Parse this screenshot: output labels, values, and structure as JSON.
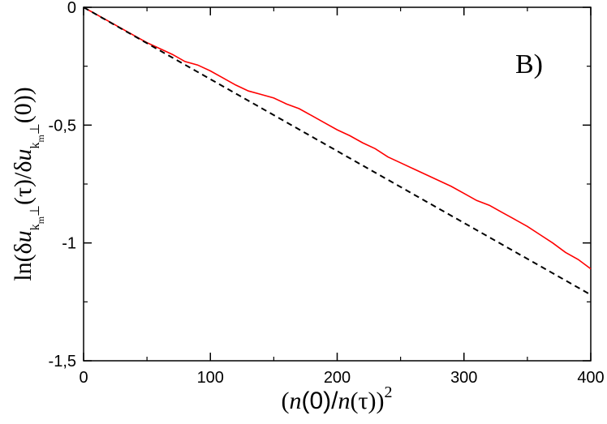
{
  "chart_data": {
    "type": "line",
    "panel_label": "B)",
    "xlabel": "(n(0)/n(τ))²",
    "ylabel": "ln(δu_{k_m⊥}(τ)/δu_{k_m⊥}(0))",
    "xlim": [
      0,
      400
    ],
    "ylim": [
      -1.5,
      0
    ],
    "x_ticks": [
      0,
      100,
      200,
      300,
      400
    ],
    "x_tick_labels": [
      "0",
      "100",
      "200",
      "300",
      "400"
    ],
    "y_ticks": [
      0,
      -0.5,
      -1,
      -1.5
    ],
    "y_tick_labels": [
      "0",
      "-0,5",
      "-1",
      "-1,5"
    ],
    "grid": false,
    "series": [
      {
        "style": "solid",
        "color": "#ff0000",
        "x": [
          0,
          10,
          20,
          30,
          40,
          50,
          60,
          70,
          80,
          90,
          100,
          110,
          120,
          130,
          140,
          150,
          160,
          170,
          180,
          190,
          200,
          210,
          220,
          230,
          240,
          250,
          260,
          270,
          280,
          290,
          300,
          310,
          320,
          330,
          340,
          350,
          360,
          370,
          380,
          390,
          400
        ],
        "y": [
          0,
          -0.03,
          -0.06,
          -0.09,
          -0.12,
          -0.15,
          -0.175,
          -0.2,
          -0.23,
          -0.245,
          -0.27,
          -0.3,
          -0.33,
          -0.355,
          -0.37,
          -0.385,
          -0.41,
          -0.43,
          -0.46,
          -0.49,
          -0.52,
          -0.545,
          -0.575,
          -0.6,
          -0.635,
          -0.66,
          -0.685,
          -0.71,
          -0.735,
          -0.76,
          -0.79,
          -0.82,
          -0.84,
          -0.87,
          -0.9,
          -0.93,
          -0.965,
          -1.0,
          -1.04,
          -1.07,
          -1.11
        ]
      },
      {
        "style": "dashed",
        "color": "#000000",
        "x": [
          0,
          400
        ],
        "y": [
          0,
          -1.22
        ]
      }
    ]
  }
}
